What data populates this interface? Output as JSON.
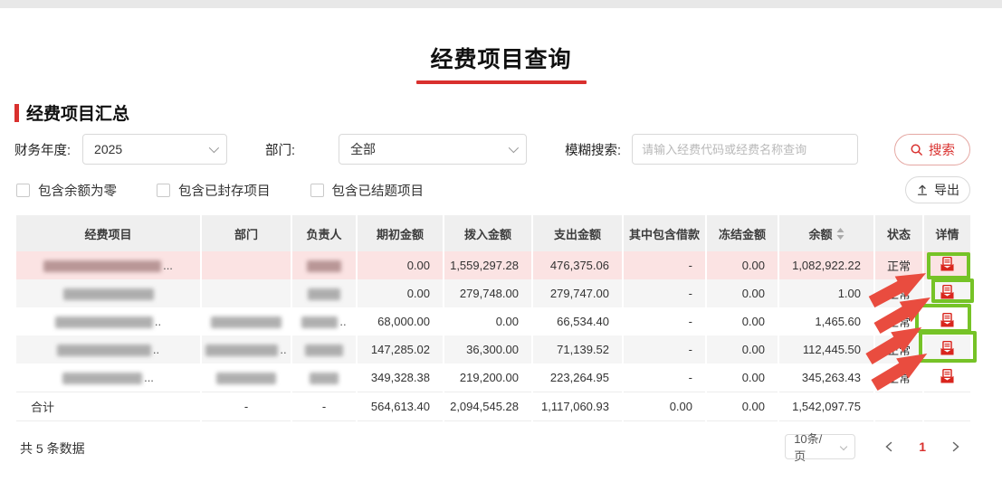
{
  "header": {
    "title": "经费项目查询"
  },
  "section": {
    "title": "经费项目汇总"
  },
  "filters": {
    "year": {
      "label": "财务年度:",
      "value": "2025"
    },
    "dept": {
      "label": "部门:",
      "value": "全部"
    },
    "search": {
      "label": "模糊搜索:",
      "placeholder": "请输入经费代码或经费名称查询",
      "button": "搜索"
    },
    "export_label": "导出",
    "checkboxes": [
      {
        "label": "包含余额为零",
        "checked": false
      },
      {
        "label": "包含已封存项目",
        "checked": false
      },
      {
        "label": "包含已结题项目",
        "checked": false
      }
    ]
  },
  "table": {
    "columns": [
      {
        "label": "经费项目"
      },
      {
        "label": "部门"
      },
      {
        "label": "负责人"
      },
      {
        "label": "期初金额"
      },
      {
        "label": "拨入金额"
      },
      {
        "label": "支出金额"
      },
      {
        "label": "其中包含借款"
      },
      {
        "label": "冻结金额"
      },
      {
        "label": "余额",
        "sortable": true
      },
      {
        "label": "状态"
      },
      {
        "label": "详情"
      }
    ],
    "rows": [
      {
        "name": {
          "redacted": true,
          "width": 130,
          "suffix": "..."
        },
        "dept": {
          "redacted": false,
          "width": 0,
          "suffix": ""
        },
        "owner": {
          "redacted": true,
          "width": 38,
          "suffix": ""
        },
        "opening": "0.00",
        "inflow": "1,559,297.28",
        "expense": "476,375.06",
        "loan": "-",
        "frozen": "0.00",
        "balance": "1,082,922.22",
        "status": "正常",
        "highlight": true
      },
      {
        "name": {
          "redacted": true,
          "width": 100,
          "suffix": ""
        },
        "dept": {
          "redacted": false,
          "width": 0,
          "suffix": ""
        },
        "owner": {
          "redacted": true,
          "width": 36,
          "suffix": ""
        },
        "opening": "0.00",
        "inflow": "279,748.00",
        "expense": "279,747.00",
        "loan": "-",
        "frozen": "0.00",
        "balance": "1.00",
        "status": "正常",
        "highlight": false
      },
      {
        "name": {
          "redacted": true,
          "width": 108,
          "suffix": ".."
        },
        "dept": {
          "redacted": true,
          "width": 78,
          "suffix": ""
        },
        "owner": {
          "redacted": true,
          "width": 40,
          "suffix": ".."
        },
        "opening": "68,000.00",
        "inflow": "0.00",
        "expense": "66,534.40",
        "loan": "-",
        "frozen": "0.00",
        "balance": "1,465.60",
        "status": "正常",
        "highlight": false
      },
      {
        "name": {
          "redacted": true,
          "width": 104,
          "suffix": ".."
        },
        "dept": {
          "redacted": true,
          "width": 80,
          "suffix": ".."
        },
        "owner": {
          "redacted": true,
          "width": 42,
          "suffix": ""
        },
        "opening": "147,285.02",
        "inflow": "36,300.00",
        "expense": "71,139.52",
        "loan": "-",
        "frozen": "0.00",
        "balance": "112,445.50",
        "status": "正常",
        "highlight": false
      },
      {
        "name": {
          "redacted": true,
          "width": 88,
          "suffix": "..."
        },
        "dept": {
          "redacted": true,
          "width": 66,
          "suffix": ""
        },
        "owner": {
          "redacted": true,
          "width": 32,
          "suffix": ""
        },
        "opening": "349,328.38",
        "inflow": "219,200.00",
        "expense": "223,264.95",
        "loan": "-",
        "frozen": "0.00",
        "balance": "345,263.43",
        "status": "正常",
        "highlight": false
      }
    ],
    "total": {
      "label": "合计",
      "dept": "-",
      "owner": "-",
      "opening": "564,613.40",
      "inflow": "2,094,545.28",
      "expense": "1,117,060.93",
      "loan": "0.00",
      "frozen": "0.00",
      "balance": "1,542,097.75",
      "status": "",
      "detail": ""
    }
  },
  "footer": {
    "count": "共 5 条数据",
    "page_size": "10条/页",
    "current_page": "1"
  },
  "colors": {
    "accent_red": "#d9302e",
    "icon_red": "#d9251d",
    "annotation_green": "#76c327",
    "arrow_red": "#e94c3f",
    "row_highlight": "#fbe3e3",
    "row_stripe": "#f5f5f5",
    "header_bg": "#efefef"
  }
}
